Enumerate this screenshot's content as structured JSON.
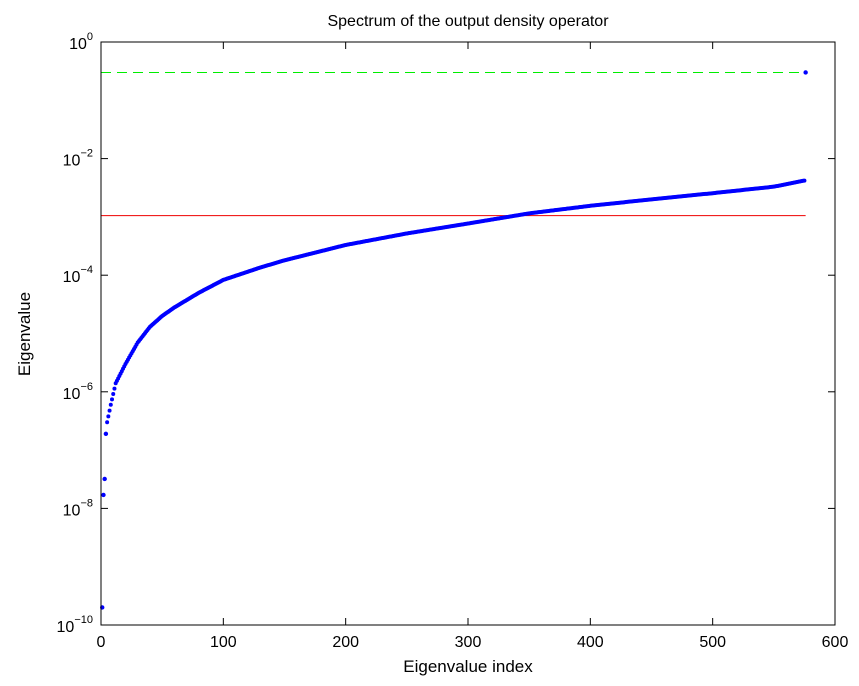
{
  "chart_data": {
    "type": "scatter",
    "title": "Spectrum of the output density operator",
    "xlabel": "Eigenvalue index",
    "ylabel": "Eigenvalue",
    "xlim": [
      0,
      600
    ],
    "ylim": [
      1e-10,
      1
    ],
    "yscale": "log",
    "grid": false,
    "x_ticks": [
      {
        "value": 0,
        "label": "0"
      },
      {
        "value": 100,
        "label": "100"
      },
      {
        "value": 200,
        "label": "200"
      },
      {
        "value": 300,
        "label": "300"
      },
      {
        "value": 400,
        "label": "400"
      },
      {
        "value": 500,
        "label": "500"
      },
      {
        "value": 600,
        "label": "600"
      }
    ],
    "y_ticks": [
      {
        "value": 1e-10,
        "base": "10",
        "exp": "−10"
      },
      {
        "value": 1e-08,
        "base": "10",
        "exp": "−8"
      },
      {
        "value": 1e-06,
        "base": "10",
        "exp": "−6"
      },
      {
        "value": 0.0001,
        "base": "10",
        "exp": "−4"
      },
      {
        "value": 0.01,
        "base": "10",
        "exp": "−2"
      },
      {
        "value": 1,
        "base": "10",
        "exp": "0"
      }
    ],
    "series": [
      {
        "kind": "points",
        "color": "#0000ff",
        "count": 576,
        "outliers": [
          {
            "x": 1,
            "y": 2e-10
          },
          {
            "x": 2,
            "y": 1.7e-08
          },
          {
            "x": 3,
            "y": 3.2e-08
          },
          {
            "x": 4,
            "y": 1.9e-07
          },
          {
            "x": 576,
            "y": 0.3
          }
        ],
        "curve": [
          {
            "x": 5,
            "y": 3e-07
          },
          {
            "x": 8,
            "y": 6e-07
          },
          {
            "x": 12,
            "y": 1.4e-06
          },
          {
            "x": 20,
            "y": 3e-06
          },
          {
            "x": 30,
            "y": 7e-06
          },
          {
            "x": 40,
            "y": 1.3e-05
          },
          {
            "x": 50,
            "y": 2e-05
          },
          {
            "x": 60,
            "y": 2.8e-05
          },
          {
            "x": 80,
            "y": 5e-05
          },
          {
            "x": 100,
            "y": 8.3e-05
          },
          {
            "x": 130,
            "y": 0.000135
          },
          {
            "x": 150,
            "y": 0.00018
          },
          {
            "x": 200,
            "y": 0.00033
          },
          {
            "x": 250,
            "y": 0.00052
          },
          {
            "x": 300,
            "y": 0.00077
          },
          {
            "x": 350,
            "y": 0.00115
          },
          {
            "x": 400,
            "y": 0.00155
          },
          {
            "x": 450,
            "y": 0.002
          },
          {
            "x": 500,
            "y": 0.00255
          },
          {
            "x": 550,
            "y": 0.0033
          },
          {
            "x": 575,
            "y": 0.0042
          }
        ]
      },
      {
        "kind": "hline",
        "color": "#00ee00",
        "dash": "dashed",
        "y": 0.3,
        "x_range": [
          0,
          576
        ]
      },
      {
        "kind": "hline",
        "color": "#ee0000",
        "dash": "solid",
        "y": 0.00105,
        "x_range": [
          0,
          576
        ]
      }
    ]
  }
}
